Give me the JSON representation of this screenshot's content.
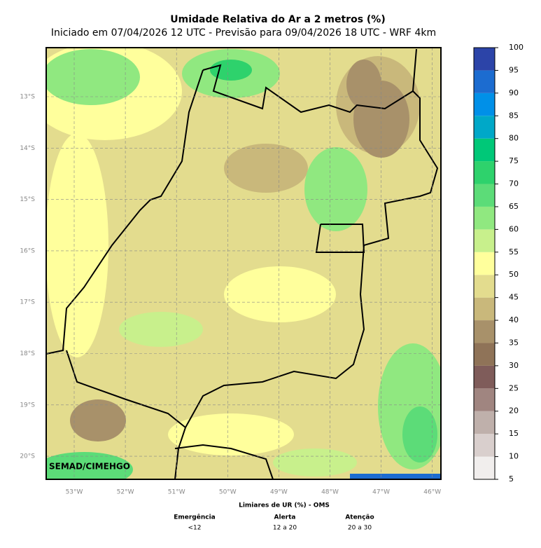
{
  "title": "Umidade Relativa do Ar a 2 metros (%)",
  "subtitle": "Iniciado em 07/04/2026 12 UTC - Previsão para 09/04/2026 18 UTC - WRF 4km",
  "map": {
    "lat_labels": [
      "13°S",
      "14°S",
      "15°S",
      "16°S",
      "17°S",
      "18°S",
      "19°S",
      "20°S"
    ],
    "lon_labels": [
      "53°W",
      "52°W",
      "51°W",
      "50°W",
      "49°W",
      "48°W",
      "47°W",
      "46°W"
    ],
    "credit": "SEMAD/CIMEHGO"
  },
  "colorbar": {
    "ticks": [
      5,
      10,
      15,
      20,
      25,
      30,
      35,
      40,
      45,
      50,
      55,
      60,
      65,
      70,
      75,
      80,
      85,
      90,
      95,
      100
    ],
    "colors": [
      "#f1eeed",
      "#d9cfcd",
      "#bfb0ab",
      "#a08580",
      "#7f5c5a",
      "#8f7358",
      "#a8916a",
      "#c9b87b",
      "#e3dc8e",
      "#ffff9c",
      "#c8f08c",
      "#90e880",
      "#5cdc78",
      "#2ed26c",
      "#00c878",
      "#00a8c8",
      "#0090e8",
      "#1c6cd0",
      "#2c44a8"
    ]
  },
  "legend": {
    "title": "Limiares de UR (%) - OMS",
    "levels": [
      {
        "name": "Emergência",
        "range": "<12"
      },
      {
        "name": "Alerta",
        "range": "12 a 20"
      },
      {
        "name": "Atenção",
        "range": "20 a 30"
      }
    ]
  }
}
